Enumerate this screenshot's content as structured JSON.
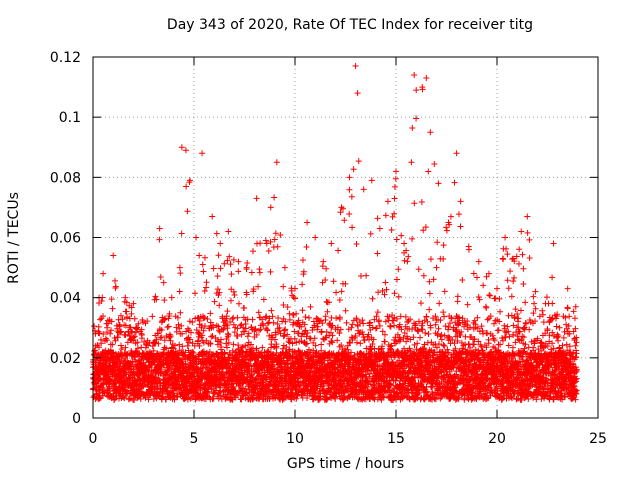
{
  "chart_data": {
    "type": "scatter",
    "title": "Day 343 of 2020, Rate Of TEC Index for receiver titg",
    "xlabel": "GPS time / hours",
    "ylabel": "ROTI / TECUs",
    "xlim": [
      0,
      25
    ],
    "ylim": [
      0,
      0.12
    ],
    "xticks": [
      0,
      5,
      10,
      15,
      20,
      25
    ],
    "xtick_labels": [
      "0",
      "5",
      "10",
      "15",
      "20",
      "25"
    ],
    "yticks": [
      0,
      0.02,
      0.04,
      0.06,
      0.08,
      0.1,
      0.12
    ],
    "ytick_labels": [
      "0",
      "0.02",
      "0.04",
      "0.06",
      "0.08",
      "0.1",
      "0.12"
    ],
    "grid": true,
    "marker": "+",
    "marker_color": "#ff0000",
    "series": [
      {
        "name": "ROTI",
        "x": [
          0.1,
          0.3,
          0.5,
          0.7,
          1.0,
          1.3,
          1.6,
          2.0,
          2.4,
          2.8,
          3.3,
          3.5,
          3.9,
          4.3,
          4.4,
          4.6,
          4.8,
          5.1,
          5.4,
          5.9,
          6.3,
          6.7,
          7.2,
          7.6,
          8.1,
          8.6,
          8.8,
          9.1,
          9.5,
          10.0,
          10.6,
          11.0,
          11.4,
          11.8,
          12.3,
          12.7,
          13.0,
          13.1,
          13.4,
          13.8,
          14.2,
          14.6,
          15.0,
          15.4,
          15.9,
          16.0,
          16.3,
          16.5,
          16.7,
          17.1,
          17.6,
          18.0,
          18.2,
          18.6,
          19.1,
          19.6,
          20.0,
          20.4,
          20.8,
          21.2,
          21.5,
          21.9,
          22.4,
          22.8,
          23.1,
          23.5,
          23.9
        ],
        "y": [
          0.012,
          0.04,
          0.048,
          0.03,
          0.054,
          0.031,
          0.04,
          0.038,
          0.028,
          0.025,
          0.063,
          0.045,
          0.04,
          0.05,
          0.09,
          0.089,
          0.079,
          0.06,
          0.088,
          0.067,
          0.058,
          0.062,
          0.052,
          0.05,
          0.073,
          0.058,
          0.07,
          0.085,
          0.05,
          0.043,
          0.065,
          0.06,
          0.052,
          0.058,
          0.07,
          0.08,
          0.117,
          0.108,
          0.076,
          0.079,
          0.063,
          0.072,
          0.082,
          0.058,
          0.114,
          0.109,
          0.11,
          0.113,
          0.095,
          0.078,
          0.065,
          0.088,
          0.072,
          0.057,
          0.052,
          0.048,
          0.043,
          0.06,
          0.053,
          0.062,
          0.067,
          0.042,
          0.038,
          0.058,
          0.03,
          0.043,
          0.037
        ]
      }
    ]
  }
}
